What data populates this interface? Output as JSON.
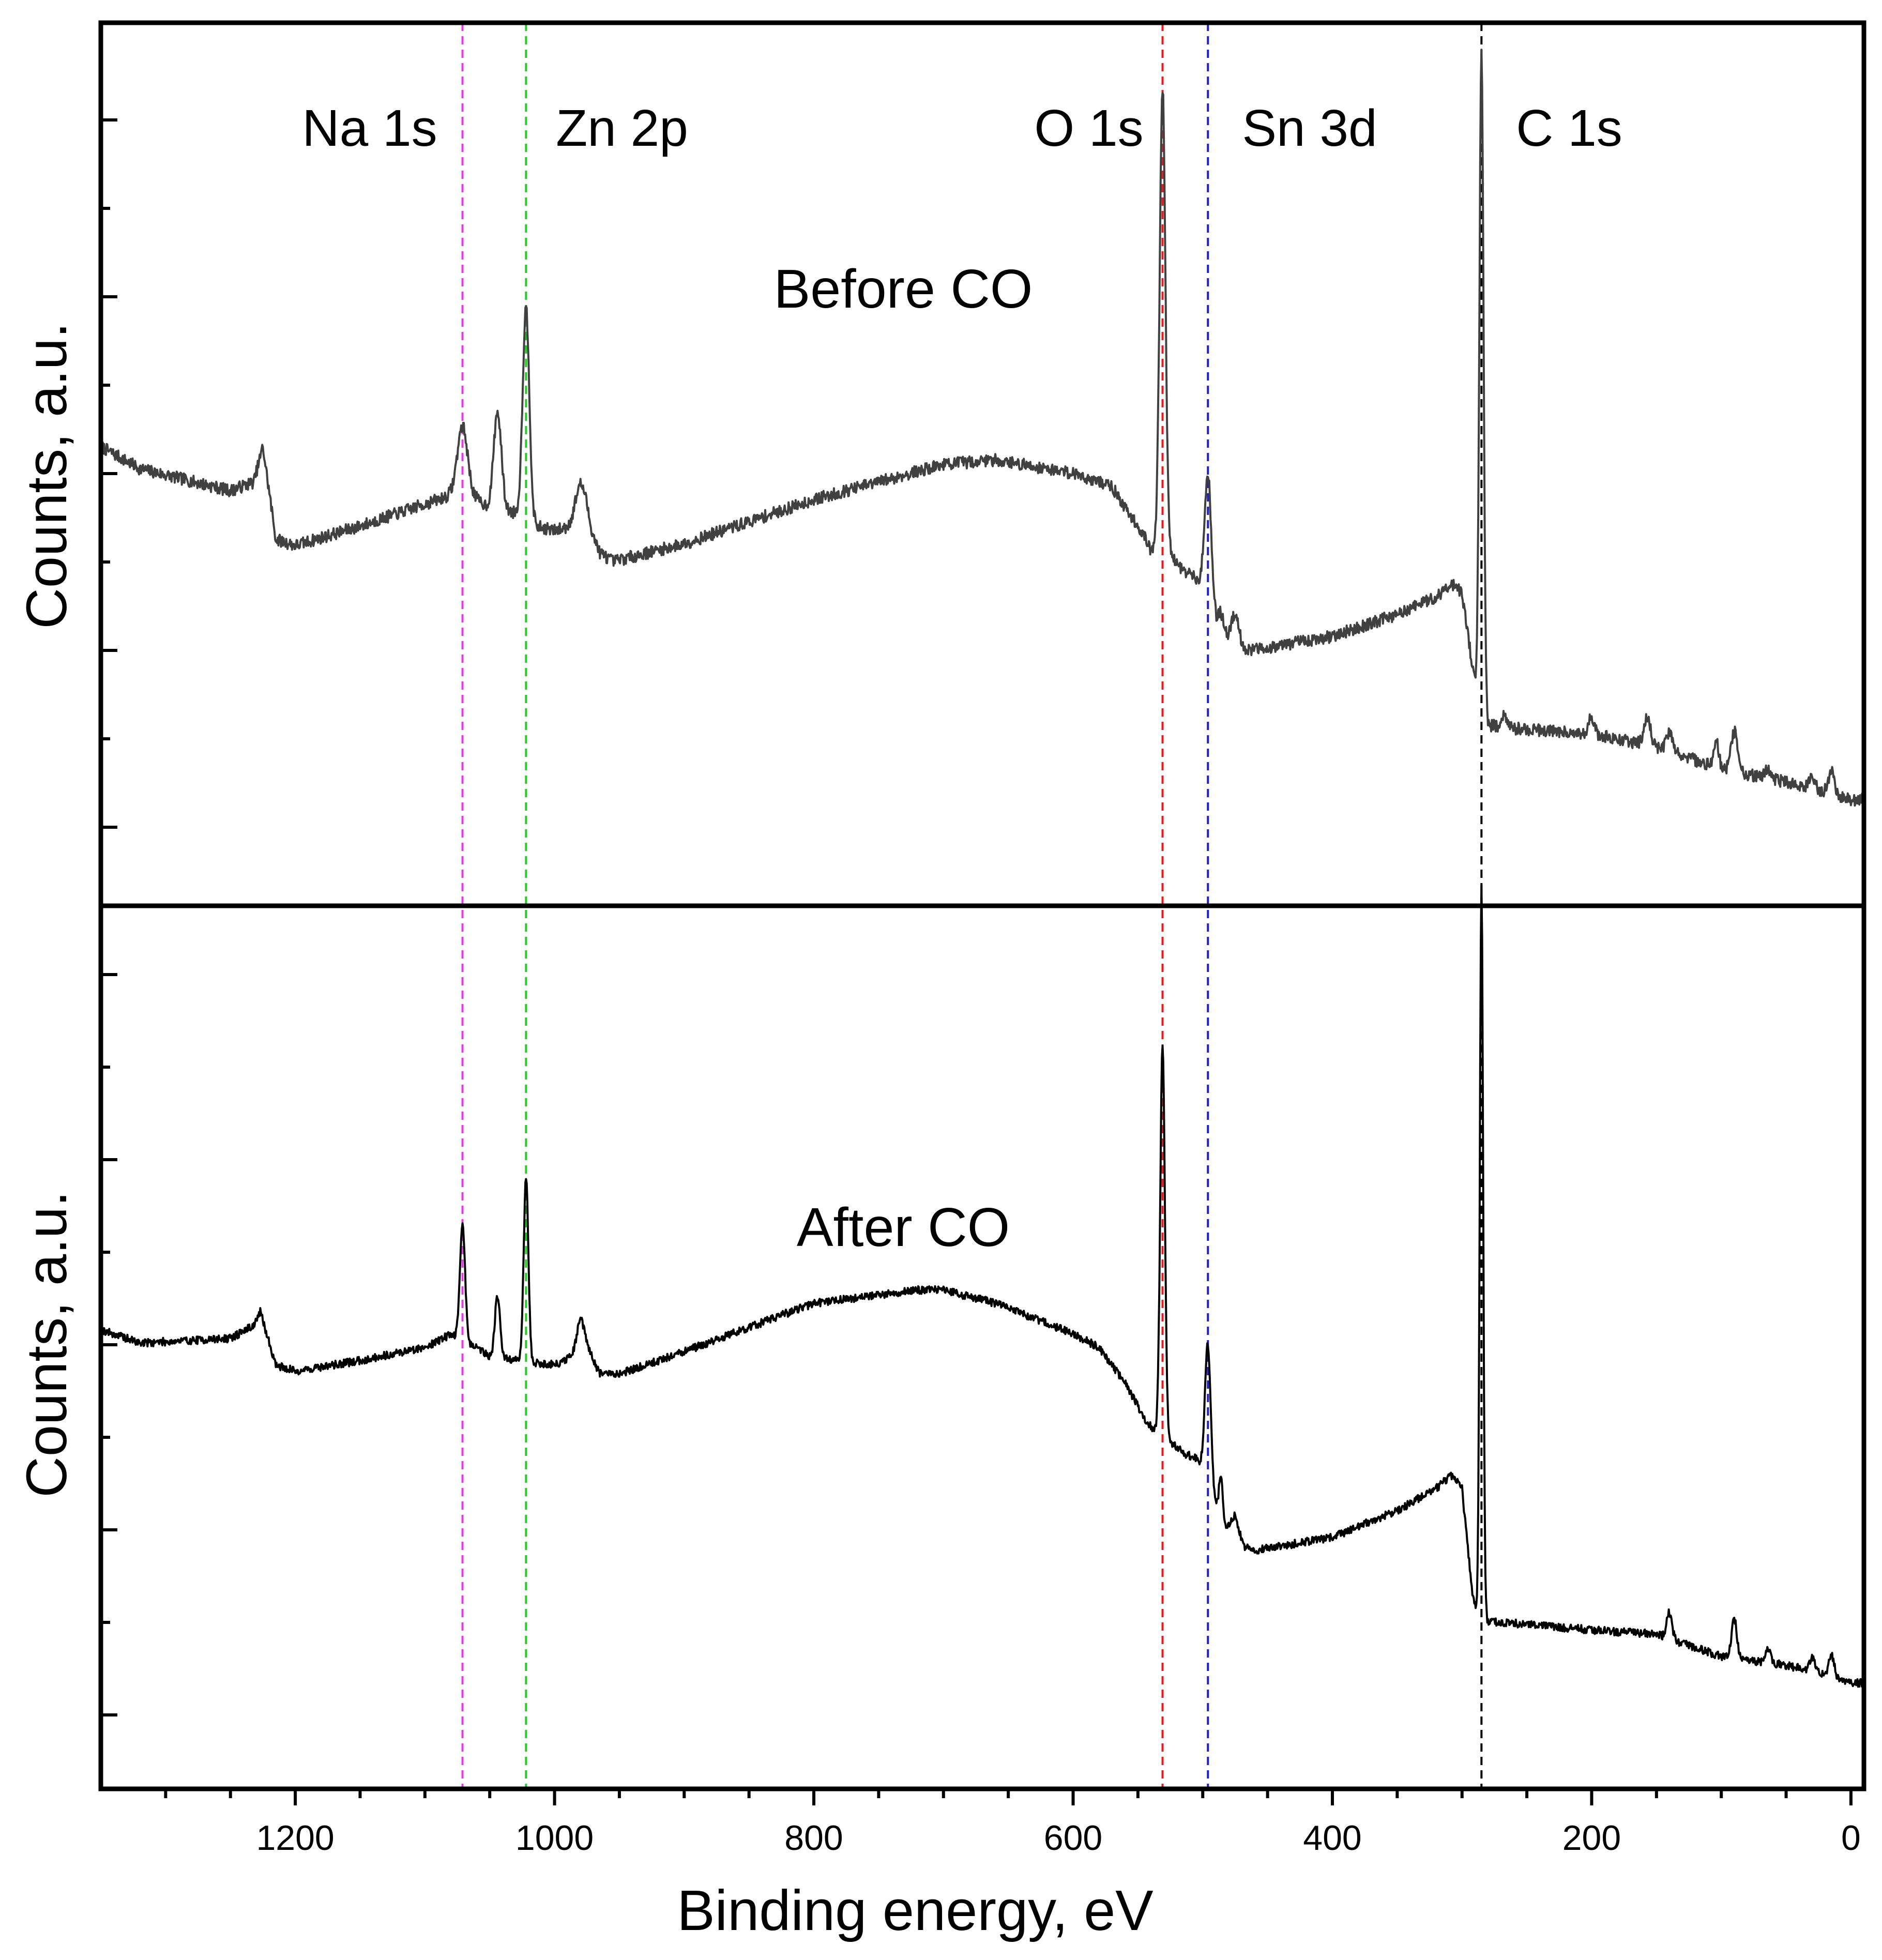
{
  "chart_data": {
    "type": "line",
    "xlabel": "Binding energy, eV",
    "xlim": [
      1350,
      -10
    ],
    "x_ticks": [
      1200,
      1000,
      800,
      600,
      400,
      200,
      0
    ],
    "x_tick_labels": [
      "1200",
      "1000",
      "800",
      "600",
      "400",
      "200",
      "0"
    ],
    "x_axis_reversed": true,
    "peak_markers": [
      {
        "name": "Na 1s",
        "x": 1071,
        "color": "#e040e0"
      },
      {
        "name": "Zn 2p",
        "x": 1022,
        "color": "#22cc22"
      },
      {
        "name": "O 1s",
        "x": 531,
        "color": "#e02020"
      },
      {
        "name": "Sn 3d",
        "x": 496,
        "color": "#2020c0"
      },
      {
        "name": "C 1s",
        "x": 285,
        "color": "#000000"
      }
    ],
    "panels": [
      {
        "label": "Before CO",
        "ylabel": "Counts, a.u.",
        "ylim": [
          0,
          100
        ],
        "color": "#404040",
        "noise": 0.7,
        "seed": 7,
        "baseline": [
          [
            1350,
            52
          ],
          [
            1320,
            49.5
          ],
          [
            1250,
            47
          ],
          [
            1232,
            48
          ],
          [
            1225,
            52
          ],
          [
            1215,
            41.5
          ],
          [
            1200,
            40.8
          ],
          [
            1150,
            43
          ],
          [
            1100,
            45.5
          ],
          [
            1080,
            46.5
          ],
          [
            1060,
            46
          ],
          [
            1050,
            45
          ],
          [
            1030,
            44.5
          ],
          [
            1015,
            43
          ],
          [
            1000,
            42.5
          ],
          [
            985,
            43
          ],
          [
            975,
            43.5
          ],
          [
            965,
            40
          ],
          [
            955,
            39
          ],
          [
            900,
            41
          ],
          [
            800,
            46
          ],
          [
            700,
            50
          ],
          [
            660,
            50.5
          ],
          [
            600,
            49
          ],
          [
            580,
            48
          ],
          [
            570,
            47.5
          ],
          [
            560,
            45
          ],
          [
            545,
            42
          ],
          [
            540,
            40
          ],
          [
            537,
            40.5
          ],
          [
            530,
            40.5
          ],
          [
            515,
            38
          ],
          [
            505,
            37
          ],
          [
            500,
            36
          ],
          [
            496,
            35
          ],
          [
            490,
            32
          ],
          [
            485,
            31
          ],
          [
            475,
            29
          ],
          [
            460,
            29
          ],
          [
            400,
            30.5
          ],
          [
            350,
            33
          ],
          [
            320,
            35
          ],
          [
            308,
            36.5
          ],
          [
            300,
            35.5
          ],
          [
            292,
            27
          ],
          [
            289,
            24
          ],
          [
            287,
            22
          ],
          [
            285,
            22
          ],
          [
            280,
            20.5
          ],
          [
            270,
            20.2
          ],
          [
            200,
            19.5
          ],
          [
            150,
            18
          ],
          [
            100,
            15.5
          ],
          [
            50,
            14
          ],
          [
            20,
            13
          ],
          [
            0,
            12
          ],
          [
            -10,
            12
          ]
        ],
        "peaks": [
          [
            1071,
            8,
            4
          ],
          [
            1044,
            11,
            3
          ],
          [
            1022,
            24,
            2.6
          ],
          [
            980,
            4.5,
            4
          ],
          [
            531,
            52,
            2.2
          ],
          [
            496,
            14,
            2.6
          ],
          [
            486,
            2,
            2
          ],
          [
            475,
            4,
            3
          ],
          [
            285,
            75,
            1.6
          ],
          [
            268,
            1.2,
            2
          ],
          [
            200,
            2,
            2
          ],
          [
            157,
            3,
            2.5
          ],
          [
            140,
            2,
            2.5
          ],
          [
            104,
            3,
            2
          ],
          [
            90,
            4.5,
            2.5
          ],
          [
            64,
            1.2,
            2
          ],
          [
            30,
            1.5,
            2
          ],
          [
            15,
            2.5,
            2
          ]
        ]
      },
      {
        "label": "After CO",
        "ylabel": "Counts, a.u.",
        "ylim": [
          0,
          100
        ],
        "color": "#000000",
        "noise": 0.45,
        "seed": 19,
        "baseline": [
          [
            1350,
            52
          ],
          [
            1320,
            50.5
          ],
          [
            1250,
            51
          ],
          [
            1232,
            52.5
          ],
          [
            1227,
            54
          ],
          [
            1215,
            48
          ],
          [
            1200,
            47.3
          ],
          [
            1150,
            48.5
          ],
          [
            1100,
            50
          ],
          [
            1080,
            51.5
          ],
          [
            1060,
            50
          ],
          [
            1050,
            49
          ],
          [
            1030,
            48.5
          ],
          [
            1000,
            48
          ],
          [
            985,
            49
          ],
          [
            975,
            50
          ],
          [
            965,
            47
          ],
          [
            950,
            47
          ],
          [
            900,
            49.5
          ],
          [
            800,
            55
          ],
          [
            720,
            56.5
          ],
          [
            700,
            56.5
          ],
          [
            660,
            55
          ],
          [
            600,
            51.5
          ],
          [
            580,
            50
          ],
          [
            560,
            46
          ],
          [
            545,
            42
          ],
          [
            540,
            41
          ],
          [
            530,
            40
          ],
          [
            515,
            38
          ],
          [
            505,
            37.5
          ],
          [
            500,
            36.5
          ],
          [
            496,
            35.5
          ],
          [
            490,
            32
          ],
          [
            485,
            30
          ],
          [
            470,
            27.5
          ],
          [
            460,
            27
          ],
          [
            400,
            28.5
          ],
          [
            350,
            31.5
          ],
          [
            320,
            34
          ],
          [
            308,
            35.5
          ],
          [
            300,
            34
          ],
          [
            292,
            22
          ],
          [
            289,
            20
          ],
          [
            287,
            19.5
          ],
          [
            285,
            19
          ],
          [
            280,
            19
          ],
          [
            200,
            18
          ],
          [
            150,
            17.5
          ],
          [
            100,
            15
          ],
          [
            50,
            14
          ],
          [
            20,
            13
          ],
          [
            0,
            12
          ],
          [
            -10,
            12
          ]
        ],
        "peaks": [
          [
            1071,
            13,
            2
          ],
          [
            1044,
            7,
            2
          ],
          [
            1022,
            21,
            1.8
          ],
          [
            980,
            3.5,
            3
          ],
          [
            531,
            44,
            1.8
          ],
          [
            496,
            15,
            2.2
          ],
          [
            486,
            5,
            1.5
          ],
          [
            475,
            2.5,
            3
          ],
          [
            285,
            83,
            1.3
          ],
          [
            140,
            3,
            2
          ],
          [
            90,
            4.5,
            2
          ],
          [
            64,
            1.5,
            2
          ],
          [
            30,
            1.5,
            2
          ],
          [
            15,
            2.5,
            2
          ]
        ]
      }
    ]
  }
}
